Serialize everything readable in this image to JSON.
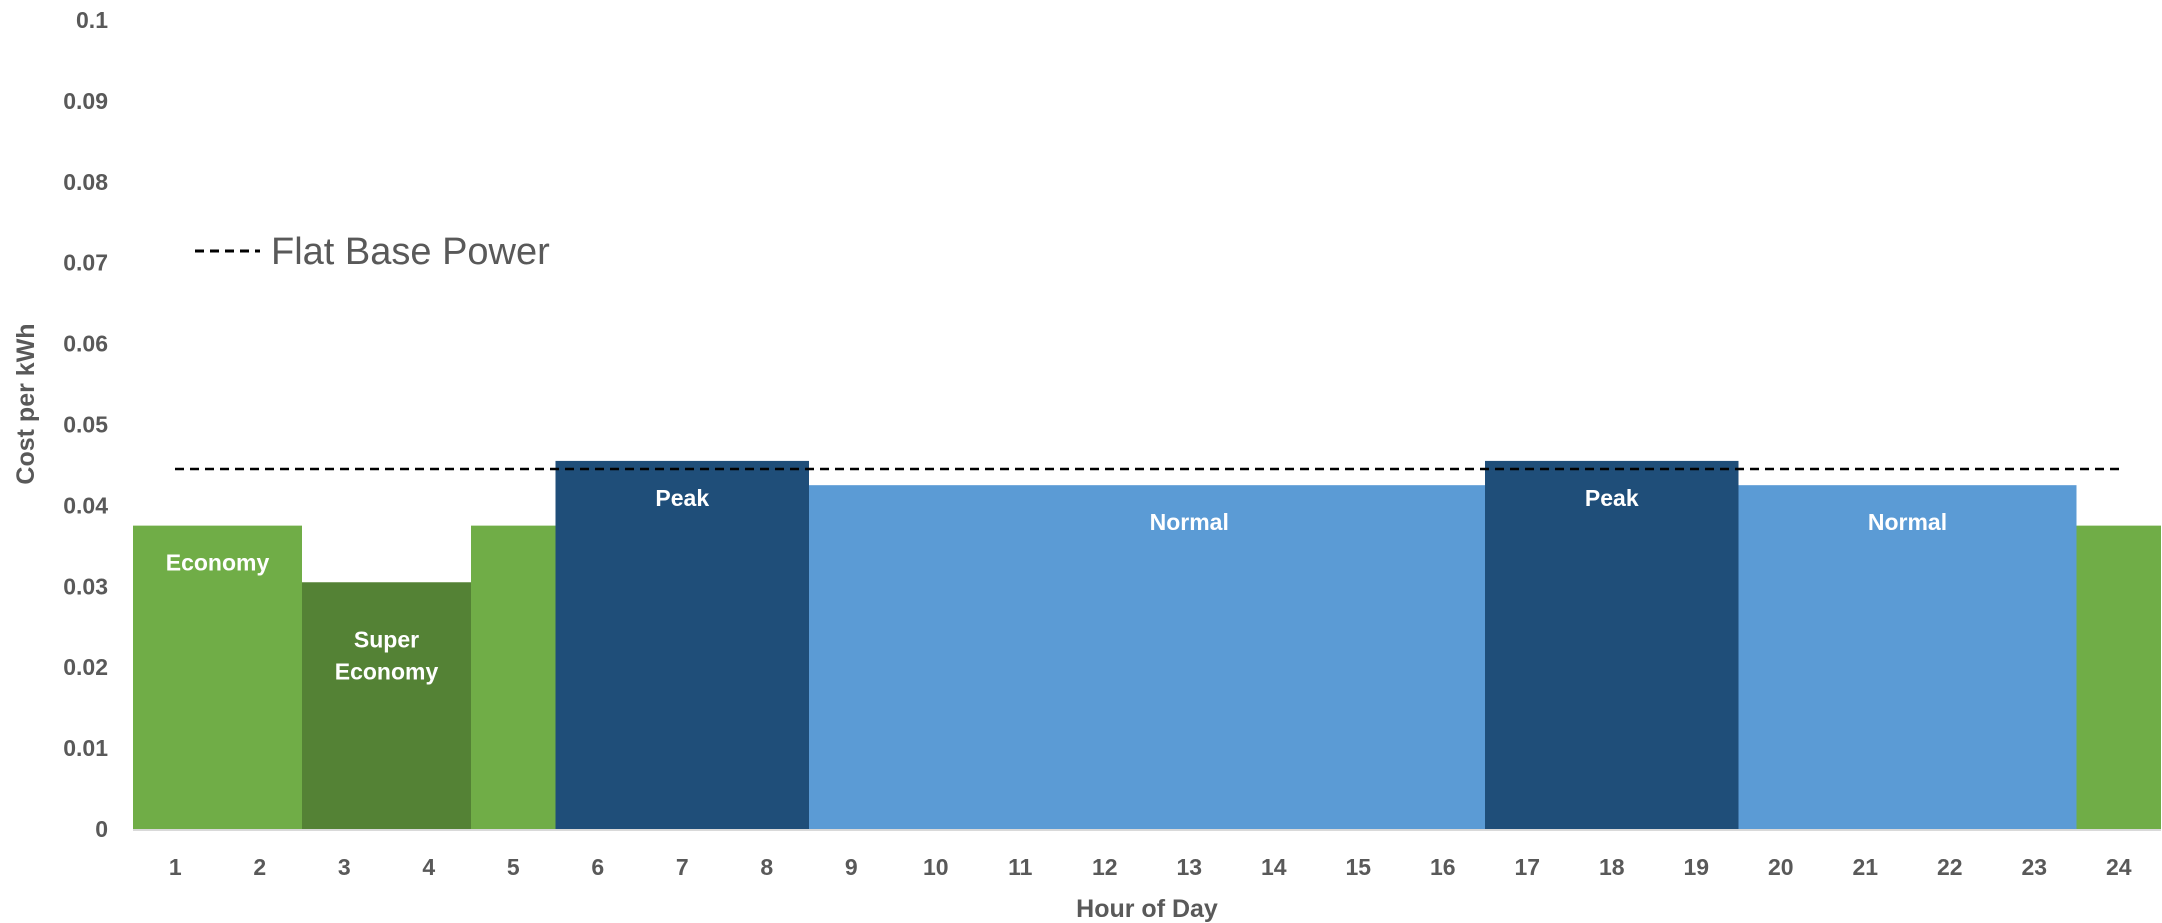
{
  "chart_data": {
    "type": "bar",
    "xlabel": "Hour of Day",
    "ylabel": "Cost per kWh",
    "ylim": [
      0,
      0.1
    ],
    "y_ticks": [
      "0",
      "0.01",
      "0.02",
      "0.03",
      "0.04",
      "0.05",
      "0.06",
      "0.07",
      "0.08",
      "0.09",
      "0.1"
    ],
    "categories": [
      "1",
      "2",
      "3",
      "4",
      "5",
      "6",
      "7",
      "8",
      "9",
      "10",
      "11",
      "12",
      "13",
      "14",
      "15",
      "16",
      "17",
      "18",
      "19",
      "20",
      "21",
      "22",
      "23",
      "24"
    ],
    "values": [
      0.0375,
      0.0375,
      0.0305,
      0.0305,
      0.0375,
      0.0455,
      0.0455,
      0.0455,
      0.0425,
      0.0425,
      0.0425,
      0.0425,
      0.0425,
      0.0425,
      0.0425,
      0.0425,
      0.0455,
      0.0455,
      0.0455,
      0.0425,
      0.0425,
      0.0425,
      0.0425,
      0.0375
    ],
    "bands": [
      {
        "label": "Economy",
        "start_hour": 1,
        "end_hour": 2,
        "value": 0.0375,
        "color": "#70AD47"
      },
      {
        "label": "Super Economy",
        "start_hour": 3,
        "end_hour": 4,
        "value": 0.0305,
        "color": "#548235"
      },
      {
        "label": "",
        "start_hour": 5,
        "end_hour": 5,
        "value": 0.0375,
        "color": "#70AD47"
      },
      {
        "label": "Peak",
        "start_hour": 6,
        "end_hour": 8,
        "value": 0.0455,
        "color": "#1F4E79"
      },
      {
        "label": "",
        "start_hour": 9,
        "end_hour": 9,
        "value": 0.0425,
        "color": "#5B9BD5"
      },
      {
        "label": "Normal",
        "start_hour": 10,
        "end_hour": 16,
        "value": 0.0425,
        "color": "#5B9BD5"
      },
      {
        "label": "Peak",
        "start_hour": 17,
        "end_hour": 19,
        "value": 0.0455,
        "color": "#1F4E79"
      },
      {
        "label": "Normal",
        "start_hour": 20,
        "end_hour": 23,
        "value": 0.0425,
        "color": "#5B9BD5"
      },
      {
        "label": "",
        "start_hour": 24,
        "end_hour": 24,
        "value": 0.0375,
        "color": "#70AD47"
      }
    ],
    "reference_line": {
      "label": "Flat Base Power",
      "value": 0.0445,
      "style": "dashed",
      "color": "#000000"
    },
    "legend": {
      "entries": [
        "Flat Base Power"
      ],
      "position": "upper-left"
    },
    "grid": false
  }
}
